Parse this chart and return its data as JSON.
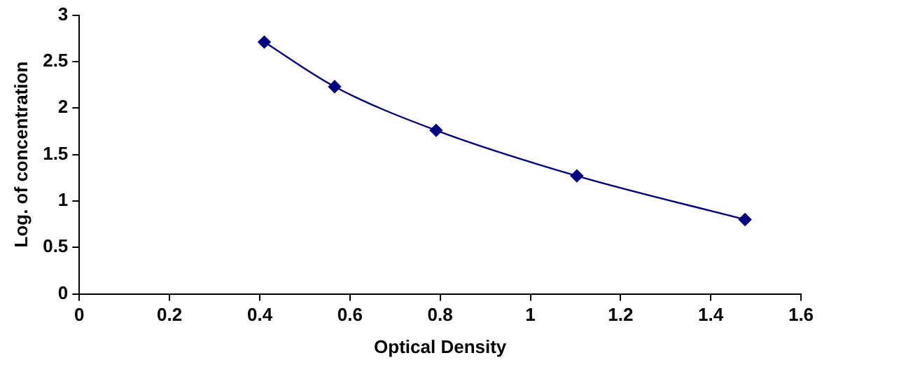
{
  "chart_data": {
    "type": "line",
    "xlabel": "Optical Density",
    "ylabel": "Log. of concentration",
    "x": [
      0.41,
      0.566,
      0.791,
      1.103,
      1.476
    ],
    "series": [
      {
        "color": "#000080",
        "values": [
          2.71,
          2.23,
          1.76,
          1.27,
          0.8
        ]
      }
    ],
    "xlim": [
      0,
      1.6
    ],
    "xticks": [
      0,
      0.2,
      0.4,
      0.6,
      0.8,
      1,
      1.2,
      1.4,
      1.6
    ],
    "ylim": [
      0,
      3
    ],
    "yticks": [
      0,
      0.5,
      1,
      1.5,
      2,
      2.5,
      3
    ],
    "grid": false,
    "legend": false,
    "marker": "diamond",
    "line_style": "solid"
  }
}
